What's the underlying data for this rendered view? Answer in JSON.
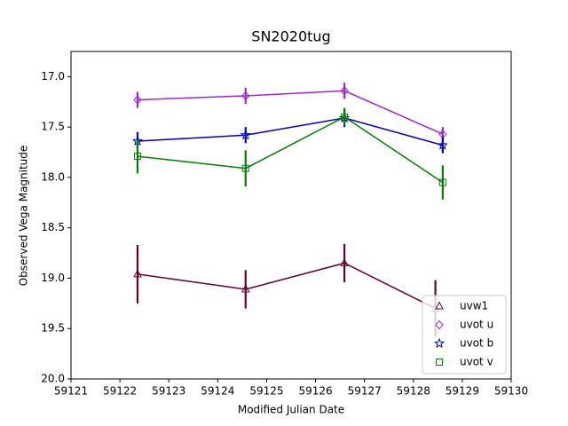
{
  "chart_data": {
    "type": "errorbar_line",
    "title": "SN2020tug",
    "x_label": "Modified Julian Date",
    "y_label": "Observed Vega Magnitude",
    "xlim": [
      59121,
      59130
    ],
    "ylim": [
      20.0,
      16.75
    ],
    "y_inverted": true,
    "xticks": [
      59121,
      59122,
      59123,
      59124,
      59125,
      59126,
      59127,
      59128,
      59129,
      59130
    ],
    "yticks": [
      {
        "value": 17.0,
        "label": "17.0"
      },
      {
        "value": 17.5,
        "label": "17.5"
      },
      {
        "value": 18.0,
        "label": "18.0"
      },
      {
        "value": 18.5,
        "label": "18.5"
      },
      {
        "value": 19.0,
        "label": "19.0"
      },
      {
        "value": 19.5,
        "label": "19.5"
      },
      {
        "value": 20.0,
        "label": "20.0"
      }
    ],
    "legend_position": "lower right",
    "series": [
      {
        "name": "uvw1",
        "color": "#660033",
        "marker": "triangle",
        "x": [
          59122.36,
          59124.57,
          59126.59,
          59128.45
        ],
        "values": [
          18.96,
          19.11,
          18.85,
          19.3
        ],
        "errors": [
          0.29,
          0.19,
          0.19,
          0.28
        ]
      },
      {
        "name": "uvot u",
        "color": "#9b27d6",
        "marker": "diamond",
        "x": [
          59122.36,
          59124.57,
          59126.59,
          59128.6
        ],
        "values": [
          17.23,
          17.19,
          17.14,
          17.57
        ],
        "errors": [
          0.08,
          0.08,
          0.08,
          0.07
        ]
      },
      {
        "name": "uvot b",
        "color": "#0000cc",
        "marker": "star",
        "x": [
          59122.36,
          59124.57,
          59126.59,
          59128.6
        ],
        "values": [
          17.64,
          17.58,
          17.41,
          17.68
        ],
        "errors": [
          0.09,
          0.08,
          0.09,
          0.08
        ]
      },
      {
        "name": "uvot v",
        "color": "#008000",
        "marker": "square",
        "x": [
          59122.36,
          59124.57,
          59126.59,
          59128.6
        ],
        "values": [
          17.79,
          17.91,
          17.4,
          18.05
        ],
        "errors": [
          0.17,
          0.18,
          0.09,
          0.17
        ]
      }
    ]
  }
}
